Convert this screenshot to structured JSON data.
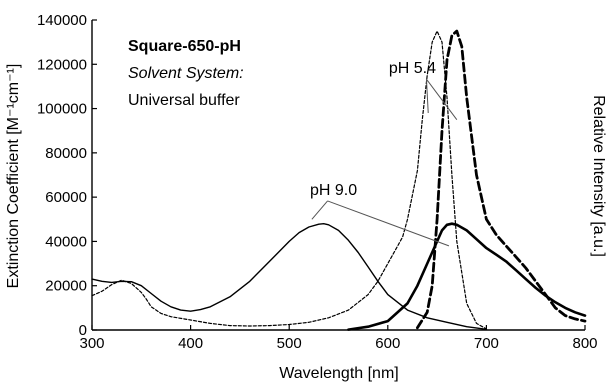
{
  "chart_data": {
    "type": "line",
    "title": "",
    "xlabel": "Wavelength [nm]",
    "ylabel": "Extinction Coefficient [M⁻¹cm⁻¹]",
    "y2label": "Relative Intensity [a.u.]",
    "xlim": [
      300,
      800
    ],
    "ylim": [
      0,
      140000
    ],
    "x_ticks": [
      300,
      400,
      500,
      600,
      700,
      800
    ],
    "y_ticks": [
      0,
      20000,
      40000,
      60000,
      80000,
      100000,
      120000,
      140000
    ],
    "grid": false,
    "legend_text": {
      "name": "Square-650-pH",
      "solvent_label": "Solvent System:",
      "solvent": "Universal buffer"
    },
    "annotations": [
      {
        "text": "pH 5.4",
        "x": 625,
        "y": 116000
      },
      {
        "text": "pH 9.0",
        "x": 545,
        "y": 61000
      }
    ],
    "series": [
      {
        "style": "solid-thin",
        "x": [
          300,
          310,
          320,
          330,
          340,
          350,
          360,
          370,
          380,
          390,
          400,
          410,
          420,
          440,
          460,
          480,
          500,
          510,
          520,
          530,
          535,
          540,
          550,
          560,
          570,
          580,
          590,
          600,
          620,
          640,
          660,
          680,
          700
        ],
        "y": [
          23000,
          22000,
          21500,
          22000,
          21800,
          20000,
          16500,
          13000,
          10500,
          9000,
          8500,
          9200,
          10500,
          15000,
          22000,
          31000,
          40000,
          44000,
          46500,
          47800,
          48000,
          47500,
          45000,
          40500,
          35000,
          28500,
          22000,
          16000,
          9000,
          5500,
          3500,
          1500,
          300
        ]
      },
      {
        "style": "dotted",
        "x": [
          300,
          310,
          320,
          330,
          340,
          350,
          355,
          360,
          370,
          380,
          400,
          420,
          440,
          460,
          480,
          500,
          520,
          540,
          560,
          580,
          590,
          600,
          610,
          615,
          620,
          630,
          635,
          640,
          645,
          650,
          655,
          660,
          665,
          670,
          680,
          690,
          700
        ],
        "y": [
          15500,
          17500,
          20500,
          22500,
          21000,
          17000,
          14000,
          10500,
          7500,
          6000,
          4500,
          3000,
          2000,
          1800,
          2000,
          2500,
          3500,
          5500,
          9000,
          16000,
          22000,
          30000,
          38000,
          42000,
          50000,
          72000,
          95000,
          115000,
          130000,
          135000,
          130000,
          105000,
          70000,
          40000,
          12000,
          3000,
          500
        ]
      },
      {
        "style": "dashed-bold",
        "x": [
          630,
          640,
          645,
          650,
          655,
          660,
          665,
          670,
          675,
          680,
          690,
          700,
          710,
          720,
          730,
          740,
          750,
          760,
          770,
          780,
          790,
          800
        ],
        "y": [
          1000,
          8000,
          20000,
          50000,
          90000,
          122000,
          133000,
          135000,
          128000,
          105000,
          70000,
          50000,
          43000,
          38000,
          33000,
          28000,
          22000,
          16000,
          10000,
          6500,
          5000,
          4000
        ]
      },
      {
        "style": "solid-bold",
        "x": [
          560,
          580,
          600,
          620,
          630,
          640,
          650,
          655,
          660,
          665,
          670,
          680,
          690,
          700,
          710,
          720,
          730,
          740,
          750,
          760,
          770,
          780,
          790,
          800
        ],
        "y": [
          200,
          1500,
          4000,
          12000,
          20000,
          30000,
          40000,
          45000,
          47500,
          48000,
          47500,
          45000,
          41000,
          37000,
          34000,
          31000,
          27000,
          23000,
          19000,
          15500,
          12500,
          10000,
          8000,
          6500
        ]
      }
    ]
  }
}
